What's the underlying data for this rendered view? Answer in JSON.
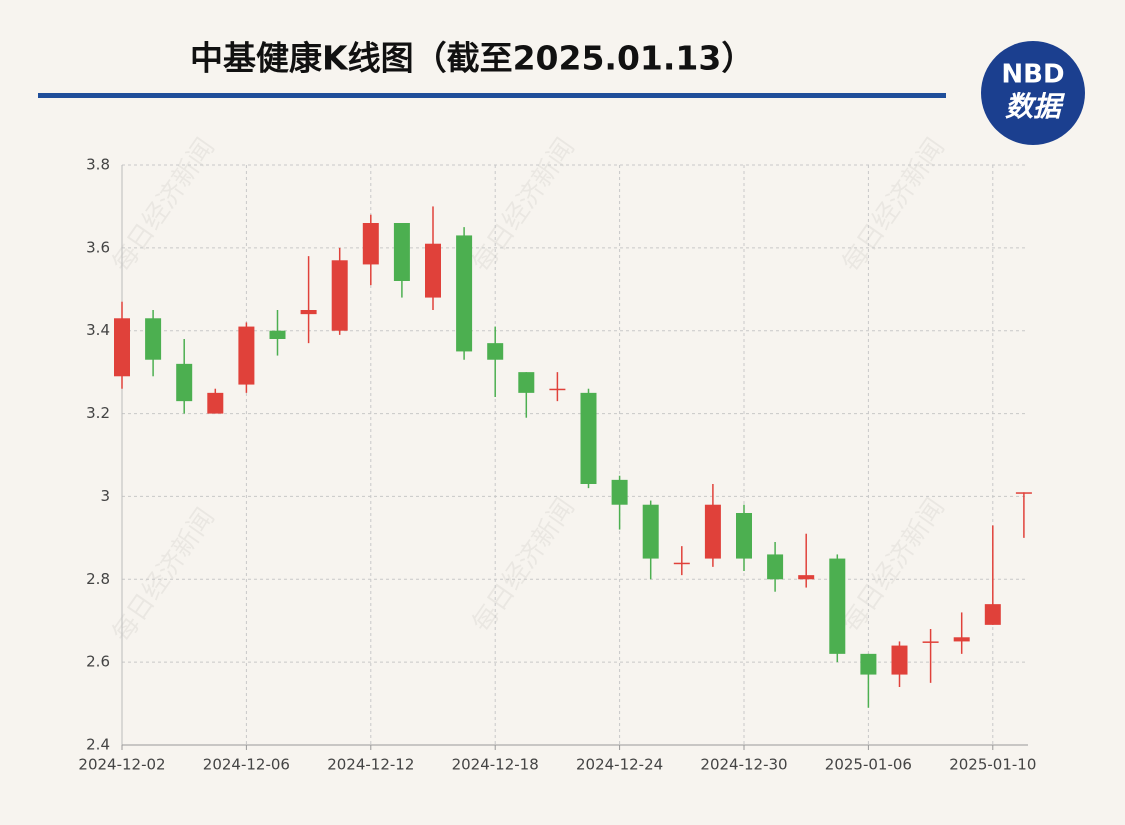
{
  "chart_data": {
    "type": "candlestick",
    "title": "中基健康K线图（截至2025.01.13）",
    "logo": {
      "top": "NBD",
      "bottom": "数据"
    },
    "watermark": "每日经济新闻",
    "categories": [
      "2024-12-02",
      null,
      null,
      null,
      "2024-12-06",
      null,
      null,
      null,
      "2024-12-12",
      null,
      null,
      null,
      "2024-12-18",
      null,
      null,
      null,
      "2024-12-24",
      null,
      null,
      null,
      "2024-12-30",
      null,
      null,
      null,
      "2025-01-06",
      null,
      null,
      null,
      "2025-01-10",
      null
    ],
    "open": [
      3.29,
      3.43,
      3.32,
      3.2,
      3.27,
      3.4,
      3.44,
      3.4,
      3.56,
      3.66,
      3.48,
      3.63,
      3.37,
      3.3,
      3.26,
      3.25,
      3.04,
      2.98,
      2.84,
      2.85,
      2.96,
      2.86,
      2.8,
      2.85,
      2.62,
      2.57,
      2.65,
      2.65,
      2.69,
      3.01
    ],
    "high": [
      3.47,
      3.45,
      3.38,
      3.26,
      3.42,
      3.45,
      3.58,
      3.6,
      3.68,
      3.66,
      3.7,
      3.65,
      3.41,
      3.3,
      3.3,
      3.26,
      3.05,
      2.99,
      2.88,
      3.03,
      2.98,
      2.89,
      2.91,
      2.86,
      2.62,
      2.65,
      2.68,
      2.72,
      2.93,
      3.01
    ],
    "low": [
      3.26,
      3.29,
      3.2,
      3.2,
      3.25,
      3.34,
      3.37,
      3.39,
      3.51,
      3.48,
      3.45,
      3.33,
      3.24,
      3.19,
      3.23,
      3.02,
      2.92,
      2.8,
      2.81,
      2.83,
      2.82,
      2.77,
      2.78,
      2.6,
      2.49,
      2.54,
      2.55,
      2.62,
      2.69,
      2.9
    ],
    "close": [
      3.43,
      3.33,
      3.23,
      3.25,
      3.41,
      3.38,
      3.45,
      3.57,
      3.66,
      3.52,
      3.61,
      3.35,
      3.33,
      3.25,
      3.26,
      3.03,
      2.98,
      2.85,
      2.84,
      2.98,
      2.85,
      2.8,
      2.81,
      2.62,
      2.57,
      2.64,
      2.65,
      2.66,
      2.74,
      3.01
    ],
    "up_color": "#e0413a",
    "down_color": "#4caf50",
    "ylim": [
      2.4,
      3.8
    ],
    "yticks": [
      2.4,
      2.6,
      2.8,
      3,
      3.2,
      3.4,
      3.6,
      3.8
    ],
    "grid": true
  }
}
